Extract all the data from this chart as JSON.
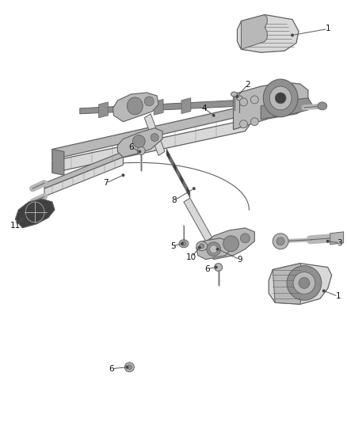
{
  "bg_color": "#ffffff",
  "lc": "#606060",
  "fc_light": "#d8d8d8",
  "fc_mid": "#b8b8b8",
  "fc_dark": "#909090",
  "fc_black": "#404040",
  "label_fs": 7.5,
  "label_color": "#222222"
}
